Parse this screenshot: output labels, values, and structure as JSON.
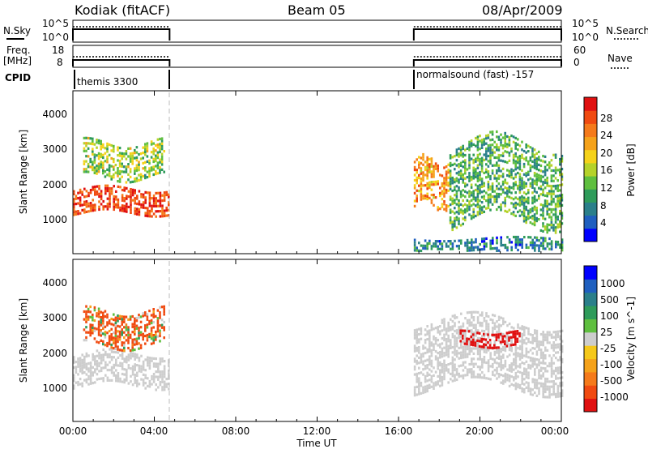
{
  "header": {
    "station": "Kodiak (fitACF)",
    "beam": "Beam 05",
    "date": "08/Apr/2009"
  },
  "status": {
    "nsky_label": "N.Sky",
    "nsearch_label": "N.Search",
    "nsky_ticks": [
      "10^5",
      "10^0"
    ],
    "nsearch_ticks": [
      "10^5",
      "10^0"
    ],
    "freq_label_line1": "Freq.",
    "freq_label_line2": "[MHz]",
    "freq_ticks": [
      "18",
      "8"
    ],
    "nave_label": "Nave",
    "nave_ticks": [
      "60",
      "0"
    ],
    "cpid_label": "CPID",
    "cpid_left": "themis 3300",
    "cpid_right": "normalsound (fast) -157"
  },
  "x_axis": {
    "label": "Time UT",
    "ticks": [
      "00:00",
      "04:00",
      "08:00",
      "12:00",
      "16:00",
      "20:00",
      "00:00"
    ],
    "range_hours": [
      0,
      24
    ]
  },
  "colors": {
    "power": [
      "#0000ff",
      "#1f5fbf",
      "#2a7f8a",
      "#2e9b5a",
      "#5fbf3f",
      "#b5d22a",
      "#f5d21a",
      "#f5a21a",
      "#f57a1a",
      "#f04a10",
      "#e01010"
    ],
    "velocity": [
      "#e01010",
      "#f04a10",
      "#f57a1a",
      "#f5a21a",
      "#f5c81a",
      "#cdcdcd",
      "#5fbf3f",
      "#2e9b5a",
      "#2a7f8a",
      "#1f5fbf",
      "#0000ff"
    ]
  },
  "chart_data": [
    {
      "type": "heatmap",
      "panel": "power",
      "ylabel": "Slant Range [km]",
      "ylim": [
        200,
        4700
      ],
      "y_ticks": [
        "1000",
        "2000",
        "3000",
        "4000"
      ],
      "colorbar_label": "Power [dB]",
      "colorbar_ticks": [
        "4",
        "8",
        "12",
        "16",
        "20",
        "24",
        "28"
      ],
      "colorbar_range": [
        0,
        30
      ],
      "data_periods_hours": [
        [
          0.0,
          4.75
        ],
        [
          16.75,
          24.0
        ]
      ],
      "features": [
        {
          "t": [
            0.0,
            4.75
          ],
          "range_km": [
            1300,
            2000
          ],
          "power_db": [
            22,
            30
          ]
        },
        {
          "t": [
            0.5,
            4.5
          ],
          "range_km": [
            2300,
            3300
          ],
          "power_db": [
            8,
            20
          ]
        },
        {
          "t": [
            16.75,
            18.5
          ],
          "range_km": [
            1500,
            2800
          ],
          "power_db": [
            16,
            26
          ]
        },
        {
          "t": [
            18.5,
            24.0
          ],
          "range_km": [
            1100,
            3300
          ],
          "power_db": [
            6,
            16
          ]
        },
        {
          "t": [
            16.75,
            24.0
          ],
          "range_km": [
            200,
            600
          ],
          "power_db": [
            2,
            12
          ]
        }
      ]
    },
    {
      "type": "heatmap",
      "panel": "velocity",
      "ylabel": "Slant Range [km]",
      "ylim": [
        200,
        4700
      ],
      "y_ticks": [
        "1000",
        "2000",
        "3000",
        "4000"
      ],
      "colorbar_label": "Velocity [m s^-1]",
      "colorbar_ticks": [
        "1000",
        "500",
        "100",
        "25",
        "-25",
        "-100",
        "-500",
        "-1000"
      ],
      "data_periods_hours": [
        [
          0.0,
          4.75
        ],
        [
          16.75,
          24.0
        ]
      ],
      "features": [
        {
          "t": [
            0.0,
            4.75
          ],
          "range_km": [
            1200,
            2100
          ],
          "velocity_ms": [
            -25,
            25
          ]
        },
        {
          "t": [
            0.5,
            4.5
          ],
          "range_km": [
            2300,
            3300
          ],
          "velocity_ms": [
            -500,
            100
          ]
        },
        {
          "t": [
            16.75,
            24.0
          ],
          "range_km": [
            1100,
            3000
          ],
          "velocity_ms": [
            -25,
            25
          ]
        },
        {
          "t": [
            19.0,
            22.0
          ],
          "range_km": [
            2300,
            2700
          ],
          "velocity_ms": [
            -1000,
            -500
          ]
        }
      ]
    }
  ]
}
